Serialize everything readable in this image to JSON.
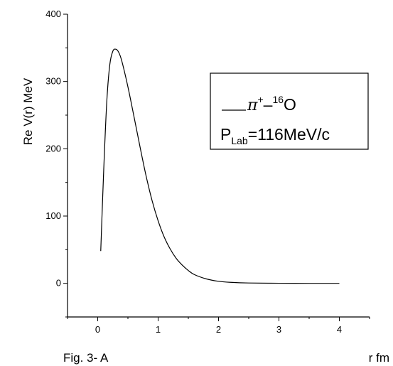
{
  "chart_data": {
    "type": "line",
    "ylabel": "Re V(r) MeV",
    "xlabel": "r fm",
    "caption": "Fig. 3- A",
    "xlim": [
      -0.5,
      4.5
    ],
    "ylim": [
      -50,
      400
    ],
    "x_ticks": [
      0,
      1,
      2,
      3,
      4
    ],
    "y_ticks": [
      0,
      100,
      200,
      300,
      400
    ],
    "x_tick_labels": [
      "0",
      "1",
      "2",
      "3",
      "4"
    ],
    "y_tick_labels": [
      "0",
      "100",
      "200",
      "300",
      "400"
    ],
    "grid": false,
    "legend_position": "top-right",
    "legend": {
      "particle": "π",
      "charge": "+",
      "dash": "–",
      "mass_number": "16",
      "element": "O",
      "momentum_symbol": "P",
      "momentum_subscript": "Lab",
      "momentum_value": "=116MeV/c"
    },
    "series": [
      {
        "x": [
          0.05,
          0.1,
          0.15,
          0.2,
          0.25,
          0.3,
          0.35,
          0.4,
          0.5,
          0.6,
          0.7,
          0.8,
          0.9,
          1.0,
          1.1,
          1.2,
          1.3,
          1.4,
          1.5,
          1.6,
          1.8,
          2.0,
          2.2,
          2.5,
          3.0,
          3.5,
          4.0
        ],
        "y": [
          48,
          170,
          270,
          325,
          345,
          348,
          343,
          330,
          292,
          248,
          203,
          160,
          123,
          93,
          69,
          51,
          37,
          27,
          19,
          13,
          6.5,
          3,
          1.5,
          0.5,
          0.1,
          0,
          0
        ]
      }
    ]
  }
}
